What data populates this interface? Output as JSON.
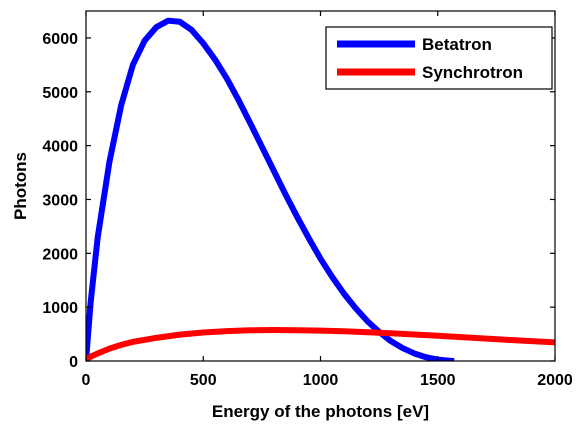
{
  "chart_data": {
    "type": "line",
    "title": "",
    "xlabel": "Energy of the photons [eV]",
    "ylabel": "Photons",
    "xlim": [
      0,
      2000
    ],
    "ylim": [
      0,
      6500
    ],
    "xticks": [
      0,
      500,
      1000,
      1500,
      2000
    ],
    "yticks": [
      0,
      1000,
      2000,
      3000,
      4000,
      5000,
      6000
    ],
    "grid": false,
    "legend": {
      "position": "top-right",
      "entries": [
        "Betatron",
        "Synchrotron"
      ]
    },
    "series": [
      {
        "name": "Betatron",
        "color": "#0000ff",
        "x": [
          0,
          20,
          50,
          100,
          150,
          200,
          250,
          300,
          350,
          400,
          450,
          500,
          550,
          600,
          650,
          700,
          750,
          800,
          850,
          900,
          950,
          1000,
          1050,
          1100,
          1150,
          1200,
          1250,
          1300,
          1350,
          1400,
          1450,
          1500,
          1550,
          1570
        ],
        "y": [
          0,
          1100,
          2300,
          3700,
          4750,
          5500,
          5950,
          6200,
          6320,
          6300,
          6150,
          5900,
          5600,
          5250,
          4850,
          4420,
          3980,
          3540,
          3100,
          2680,
          2280,
          1900,
          1560,
          1250,
          980,
          740,
          540,
          370,
          240,
          140,
          70,
          25,
          5,
          0
        ]
      },
      {
        "name": "Synchrotron",
        "color": "#ff0000",
        "x": [
          0,
          50,
          100,
          150,
          200,
          300,
          400,
          500,
          600,
          700,
          800,
          900,
          1000,
          1100,
          1200,
          1300,
          1400,
          1500,
          1600,
          1700,
          1800,
          1900,
          2000
        ],
        "y": [
          40,
          140,
          230,
          300,
          355,
          430,
          490,
          530,
          555,
          570,
          575,
          572,
          565,
          552,
          535,
          515,
          492,
          468,
          443,
          418,
          393,
          368,
          345
        ]
      }
    ]
  }
}
